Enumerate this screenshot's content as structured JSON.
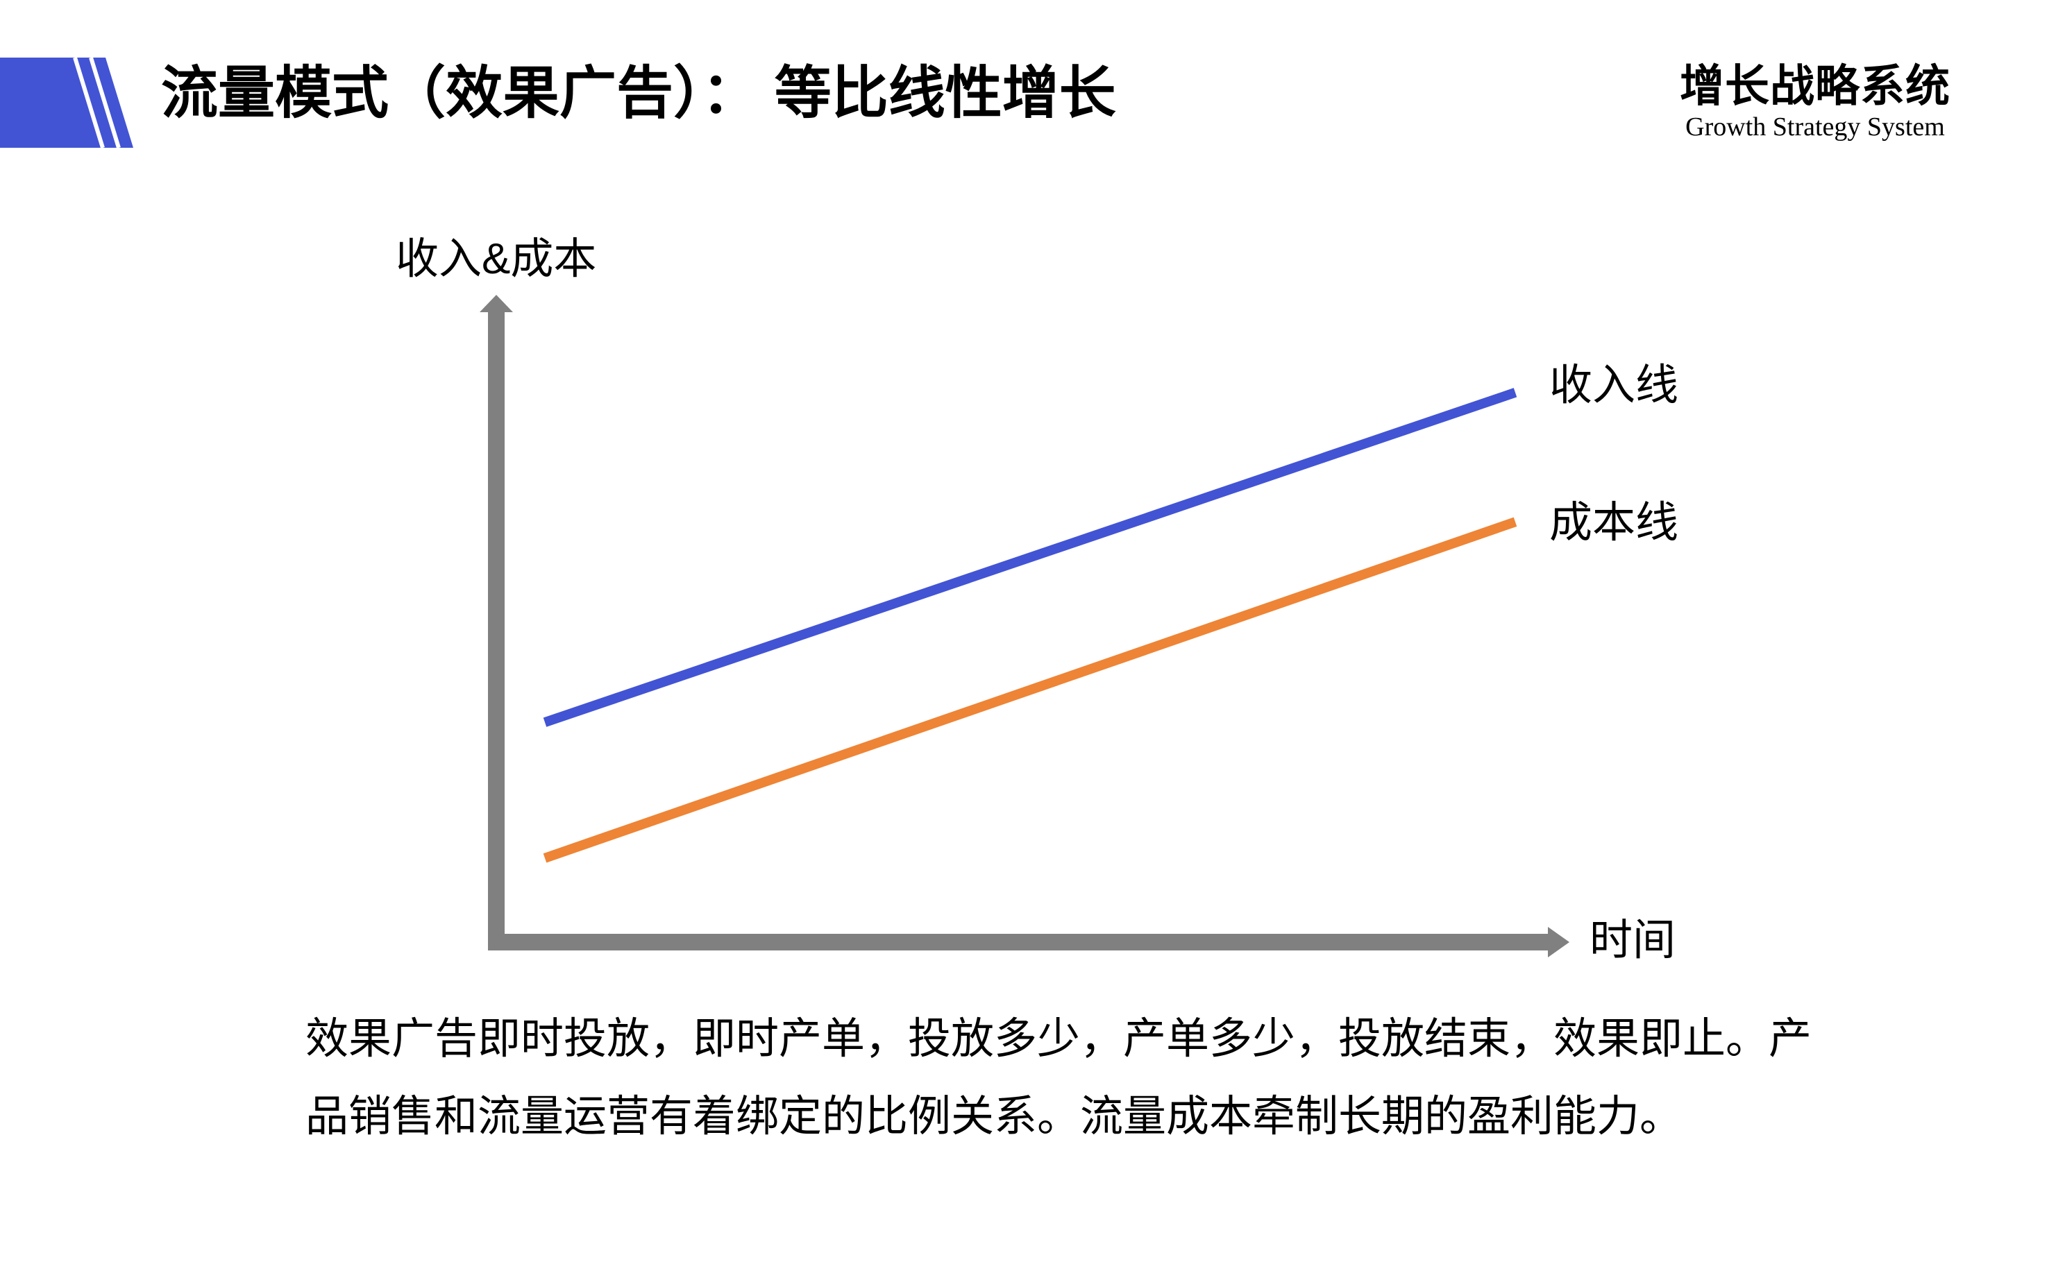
{
  "slide": {
    "title": "流量模式（效果广告）： 等比线性增长",
    "brand_cn": "增长战略系统",
    "brand_en": "Growth Strategy System"
  },
  "chart": {
    "y_axis_label": "收入&成本",
    "x_axis_label": "时间",
    "revenue_line_label": "收入线",
    "cost_line_label": "成本线"
  },
  "paragraph": {
    "lines": [
      "效果广告即时投放，即时产单，投放多少，产单多少，投放结束，效果即止。产",
      "品销售和流量运营有着绑定的比例关系。流量成本牵制长期的盈利能力。"
    ]
  },
  "colors": {
    "accent_blue": "#4254D4",
    "line_orange": "#EE8435",
    "axis_gray": "#808080",
    "text_black": "#000000"
  },
  "chart_data": {
    "type": "line",
    "title": "流量模式（效果广告）：等比线性增长",
    "xlabel": "时间",
    "ylabel": "收入&成本",
    "grid": false,
    "axes": "two gray arrow axes, no ticks, no numeric scale",
    "legend_position": "labels at right end of each line",
    "x_range_relative": [
      0,
      1
    ],
    "y_range_relative": [
      0,
      1
    ],
    "series": [
      {
        "name": "收入线",
        "color": "#4254D4",
        "x": [
          0,
          1
        ],
        "y_relative": [
          0.34,
          0.85
        ]
      },
      {
        "name": "成本线",
        "color": "#EE8435",
        "x": [
          0,
          1
        ],
        "y_relative": [
          0.13,
          0.65
        ]
      }
    ]
  }
}
